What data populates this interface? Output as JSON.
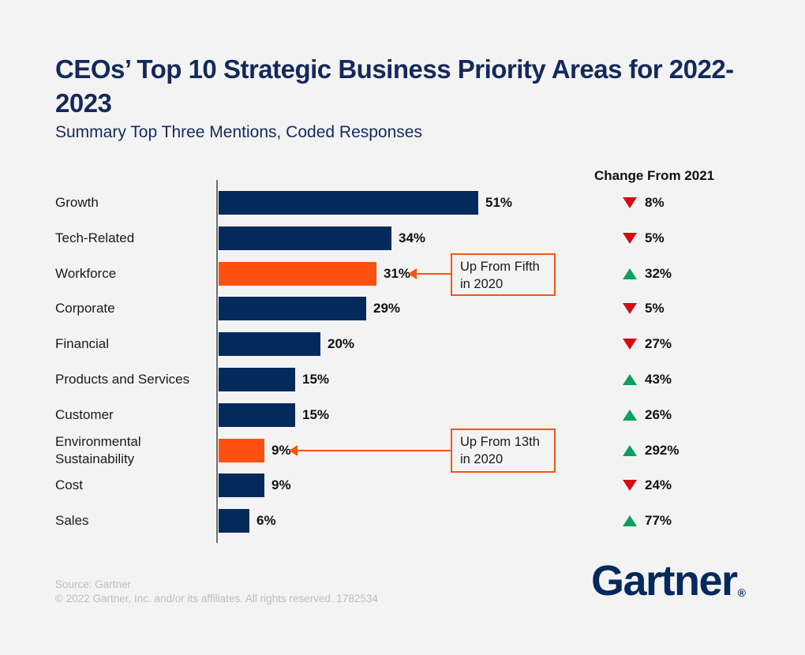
{
  "header": {
    "title": "CEOs’ Top 10 Strategic Business Priority Areas for 2022-2023",
    "subtitle": "Summary Top Three Mentions, Coded Responses"
  },
  "change_column": {
    "header": "Change From 2021"
  },
  "chart_data": {
    "type": "bar",
    "orientation": "horizontal",
    "title": "CEOs’ Top 10 Strategic Business Priority Areas for 2022-2023",
    "subtitle": "Summary Top Three Mentions, Coded Responses",
    "unit": "percent",
    "grid": false,
    "xlim": [
      0,
      55
    ],
    "categories": [
      "Growth",
      "Tech-Related",
      "Workforce",
      "Corporate",
      "Financial",
      "Products and Services",
      "Customer",
      "Environmental Sustainability",
      "Cost",
      "Sales"
    ],
    "values": [
      51,
      34,
      31,
      29,
      20,
      15,
      15,
      9,
      9,
      6
    ],
    "value_labels": [
      "51%",
      "34%",
      "31%",
      "29%",
      "20%",
      "15%",
      "15%",
      "9%",
      "9%",
      "6%"
    ],
    "bar_colors": [
      "navy",
      "navy",
      "orange",
      "navy",
      "navy",
      "navy",
      "navy",
      "orange",
      "navy",
      "navy"
    ],
    "change_from_2021": [
      {
        "direction": "down",
        "value": "8%"
      },
      {
        "direction": "down",
        "value": "5%"
      },
      {
        "direction": "up",
        "value": "32%"
      },
      {
        "direction": "down",
        "value": "5%"
      },
      {
        "direction": "down",
        "value": "27%"
      },
      {
        "direction": "up",
        "value": "43%"
      },
      {
        "direction": "up",
        "value": "26%"
      },
      {
        "direction": "up",
        "value": "292%"
      },
      {
        "direction": "down",
        "value": "24%"
      },
      {
        "direction": "up",
        "value": "77%"
      }
    ],
    "annotations": [
      {
        "text_line1": "Up From Fifth",
        "text_line2": "in 2020",
        "target_category": "Workforce"
      },
      {
        "text_line1": "Up From 13th",
        "text_line2": "in 2020",
        "target_category": "Environmental Sustainability"
      }
    ]
  },
  "footer": {
    "source": "Source: Gartner",
    "copyright": "© 2022 Gartner, Inc. and/or its affiliates. All rights reserved. 1782534"
  },
  "logo": {
    "text": "Gartner",
    "registered": "®"
  },
  "colors": {
    "background": "#F3F3F3",
    "title_navy": "#14295B",
    "bar_navy": "#032A5A",
    "bar_orange": "#FF500F",
    "callout_orange": "#F4560E",
    "increase_green": "#0AA05F",
    "decrease_red": "#D20F14"
  }
}
